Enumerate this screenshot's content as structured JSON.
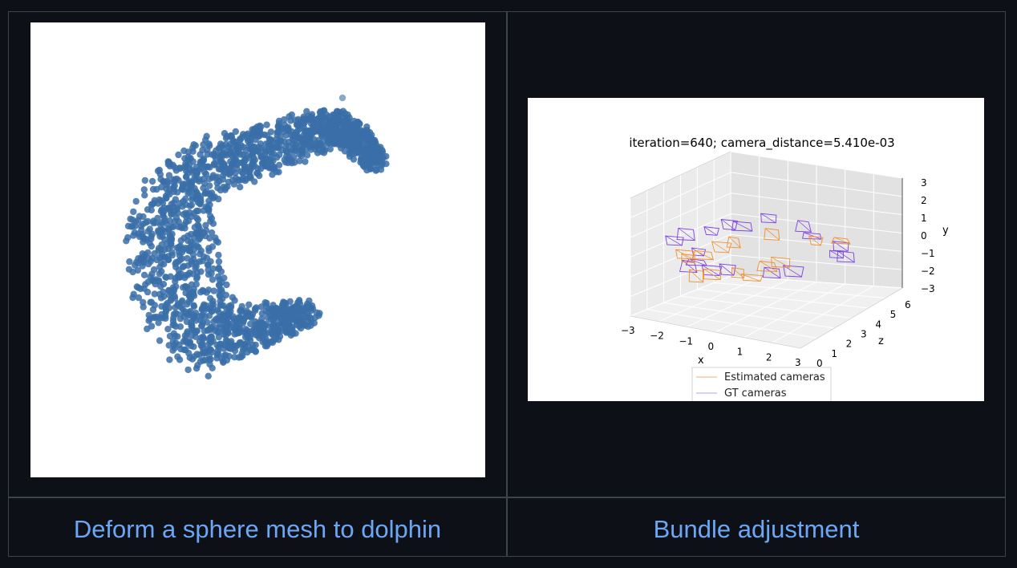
{
  "cells": [
    {
      "link_label": "Deform a sphere mesh to dolphin",
      "image_icon": "dolphin-point-cloud"
    },
    {
      "link_label": "Bundle adjustment",
      "image_icon": "bundle-adjustment-3d-plot"
    }
  ],
  "chart_data": {
    "type": "scatter",
    "title": "iteration=640; camera_distance=5.410e-03",
    "xlabel": "x",
    "ylabel": "y",
    "zlabel": "z",
    "x_ticks": [
      "−3",
      "−2",
      "−1",
      "0",
      "1",
      "2",
      "3"
    ],
    "y_ticks": [
      "3",
      "2",
      "1",
      "0",
      "−1",
      "−2",
      "−3"
    ],
    "z_ticks": [
      "0",
      "1",
      "2",
      "3",
      "4",
      "5",
      "6"
    ],
    "xlim": [
      -3,
      3
    ],
    "ylim": [
      -3,
      3
    ],
    "zlim": [
      0,
      6
    ],
    "legend": [
      "Estimated cameras",
      "GT cameras"
    ],
    "legend_position": "bottom-center",
    "series_colors": {
      "Estimated cameras": "#f28e2b",
      "GT cameras": "#7b3fe4"
    },
    "grid": true
  },
  "colors": {
    "background": "#0d1117",
    "border": "#3d444d",
    "link": "#6ca6f5",
    "point": "#3a6fa8"
  }
}
